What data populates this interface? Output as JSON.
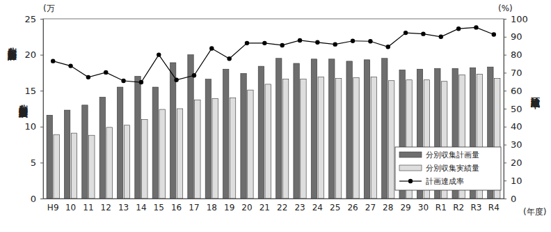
{
  "chart_data": {
    "type": "bar",
    "y_label": [
      "分別収集計画量・",
      "分別収集実績量"
    ],
    "y2_label": "計画達成率",
    "annotations": [
      "(万",
      "(%)",
      "(年度)"
    ],
    "categories": [
      "H9",
      "10",
      "11",
      "12",
      "13",
      "14",
      "15",
      "16",
      "17",
      "18",
      "19",
      "20",
      "21",
      "22",
      "23",
      "24",
      "25",
      "26",
      "27",
      "28",
      "29",
      "30",
      "R1",
      "R2",
      "R3",
      "R4"
    ],
    "series": [
      {
        "name": "分別収集計画量",
        "type": "bar",
        "color": "#6e6e6e",
        "values": [
          11.6,
          12.3,
          13.0,
          14.1,
          15.5,
          17.0,
          15.5,
          18.9,
          20.0,
          16.6,
          18.0,
          17.4,
          18.4,
          19.5,
          18.8,
          19.4,
          19.4,
          19.1,
          19.3,
          19.5,
          17.9,
          18.0,
          18.1,
          18.1,
          18.2,
          18.3
        ]
      },
      {
        "name": "分別収集実績量",
        "type": "bar",
        "color": "#dedede",
        "values": [
          8.9,
          9.1,
          8.8,
          9.9,
          10.2,
          11.0,
          12.4,
          12.5,
          13.7,
          13.9,
          14.0,
          15.1,
          15.9,
          16.6,
          16.6,
          16.9,
          16.7,
          16.8,
          16.9,
          16.4,
          16.5,
          16.5,
          16.3,
          17.2,
          17.3,
          16.7
        ]
      },
      {
        "name": "計画達成率",
        "type": "line",
        "axis": "y2",
        "color": "#000000",
        "marker": "circle",
        "line_style": "solid",
        "values": [
          76.5,
          73.8,
          67.5,
          70.2,
          65.5,
          64.7,
          80.0,
          66.0,
          68.5,
          83.5,
          77.8,
          86.5,
          86.5,
          85.3,
          88.0,
          86.9,
          85.8,
          87.7,
          87.5,
          84.4,
          92.2,
          91.6,
          90.0,
          94.5,
          95.2,
          91.3
        ]
      }
    ],
    "ylim": [
      0,
      25
    ],
    "yticks": [
      0,
      5,
      10,
      15,
      20,
      25
    ],
    "y2lim": [
      0,
      100
    ],
    "y2ticks": [
      0,
      10,
      20,
      30,
      40,
      50,
      60,
      70,
      80,
      90,
      100
    ],
    "grid": false,
    "legend": "lower right"
  }
}
